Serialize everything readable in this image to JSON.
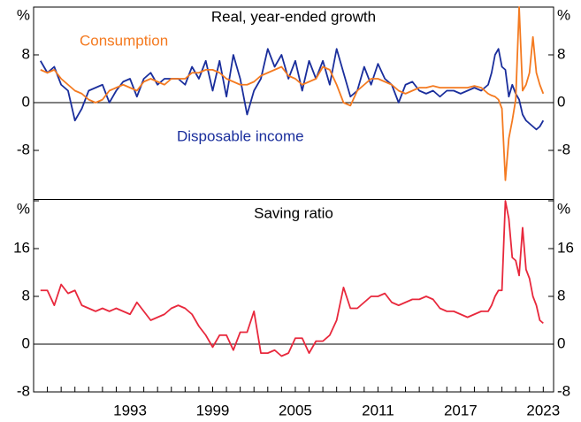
{
  "chart_data": [
    {
      "type": "line",
      "title": "Real, year-ended growth",
      "x": [
        1986.5,
        1987,
        1987.5,
        1988,
        1988.5,
        1989,
        1989.5,
        1990,
        1990.5,
        1991,
        1991.5,
        1992,
        1992.5,
        1993,
        1993.5,
        1994,
        1994.5,
        1995,
        1995.5,
        1996,
        1996.5,
        1997,
        1997.5,
        1998,
        1998.5,
        1999,
        1999.5,
        2000,
        2000.5,
        2001,
        2001.5,
        2002,
        2002.5,
        2003,
        2003.5,
        2004,
        2004.5,
        2005,
        2005.5,
        2006,
        2006.5,
        2007,
        2007.5,
        2008,
        2008.5,
        2009,
        2009.5,
        2010,
        2010.5,
        2011,
        2011.5,
        2012,
        2012.5,
        2013,
        2013.5,
        2014,
        2014.5,
        2015,
        2015.5,
        2016,
        2016.5,
        2017,
        2017.5,
        2018,
        2018.5,
        2019,
        2019.25,
        2019.5,
        2019.75,
        2020,
        2020.25,
        2020.5,
        2020.75,
        2021,
        2021.25,
        2021.5,
        2021.75,
        2022,
        2022.25,
        2022.5,
        2022.75,
        2023
      ],
      "series": [
        {
          "name": "Disposable income",
          "color": "#1a2e9c",
          "values": [
            7,
            5,
            6,
            3,
            2,
            -3,
            -1,
            2,
            2.5,
            3,
            0,
            2,
            3.5,
            4,
            1,
            4,
            5,
            3,
            4,
            4,
            4,
            3,
            6,
            4,
            7,
            2,
            7,
            1,
            8,
            4,
            -2,
            2,
            4,
            9,
            6,
            8,
            4,
            7,
            2,
            7,
            4,
            7,
            3,
            9,
            5,
            1,
            2,
            6,
            3,
            6.5,
            4,
            3,
            0,
            3,
            3.5,
            2,
            1.5,
            2,
            1,
            2,
            2,
            1.5,
            2,
            2.5,
            2,
            3,
            5,
            8,
            9,
            6,
            5.5,
            1,
            3,
            1.5,
            0.5,
            -2,
            -3,
            -3.5,
            -4,
            -4.5,
            -4,
            -3
          ]
        },
        {
          "name": "Consumption",
          "color": "#f47a20",
          "values": [
            5.5,
            5,
            5.5,
            4,
            3,
            2,
            1.5,
            0.5,
            0,
            0.5,
            2,
            2.5,
            3,
            2.5,
            2,
            3.5,
            4,
            3.5,
            3,
            4,
            4,
            4,
            5,
            5,
            5.5,
            5.5,
            5,
            4,
            3.5,
            3,
            3,
            3.5,
            4.5,
            5,
            5.5,
            6,
            4.5,
            4,
            3,
            3.5,
            4,
            6,
            5.5,
            3,
            0,
            -0.5,
            2,
            3,
            4,
            4,
            3.5,
            3,
            2,
            1.5,
            2,
            2.5,
            2.5,
            2.8,
            2.5,
            2.5,
            2.5,
            2.5,
            2.5,
            2.8,
            2.5,
            1.5,
            1.2,
            1.0,
            0.5,
            -1,
            -13,
            -6,
            -3,
            0.5,
            16,
            2,
            3,
            5,
            11,
            5,
            3,
            1.5
          ]
        }
      ],
      "xlim": [
        1986,
        2023.75
      ],
      "ylim": [
        -16,
        16
      ],
      "yticks": [
        -8,
        0,
        8,
        {
          "value": 16,
          "label": "%"
        }
      ]
    },
    {
      "type": "line",
      "title": "Saving ratio",
      "x": [
        1986.5,
        1987,
        1987.5,
        1988,
        1988.5,
        1989,
        1989.5,
        1990,
        1990.5,
        1991,
        1991.5,
        1992,
        1992.5,
        1993,
        1993.5,
        1994,
        1994.5,
        1995,
        1995.5,
        1996,
        1996.5,
        1997,
        1997.5,
        1998,
        1998.5,
        1999,
        1999.5,
        2000,
        2000.5,
        2001,
        2001.5,
        2002,
        2002.5,
        2003,
        2003.5,
        2004,
        2004.5,
        2005,
        2005.5,
        2006,
        2006.5,
        2007,
        2007.5,
        2008,
        2008.5,
        2009,
        2009.5,
        2010,
        2010.5,
        2011,
        2011.5,
        2012,
        2012.5,
        2013,
        2013.5,
        2014,
        2014.5,
        2015,
        2015.5,
        2016,
        2016.5,
        2017,
        2017.5,
        2018,
        2018.5,
        2019,
        2019.25,
        2019.5,
        2019.75,
        2020,
        2020.25,
        2020.5,
        2020.75,
        2021,
        2021.25,
        2021.5,
        2021.75,
        2022,
        2022.25,
        2022.5,
        2022.75,
        2023
      ],
      "series": [
        {
          "name": "Saving ratio",
          "color": "#e8283c",
          "values": [
            9,
            9,
            6.5,
            10,
            8.5,
            9,
            6.5,
            6,
            5.5,
            6,
            5.5,
            6,
            5.5,
            5,
            7,
            5.5,
            4,
            4.5,
            5,
            6,
            6.5,
            6,
            5,
            3,
            1.5,
            -0.5,
            1.5,
            1.5,
            -1,
            2,
            2,
            5.5,
            -1.5,
            -1.5,
            -1,
            -2,
            -1.5,
            1,
            1,
            -1.5,
            0.5,
            0.5,
            1.5,
            4,
            9.5,
            6,
            6,
            7,
            8,
            8,
            8.5,
            7,
            6.5,
            7,
            7.5,
            7.5,
            8,
            7.5,
            6,
            5.5,
            5.5,
            5,
            4.5,
            5,
            5.5,
            5.5,
            6.5,
            8,
            9,
            9,
            24,
            21,
            14.5,
            14,
            11.5,
            19.5,
            12.5,
            11,
            8,
            6.5,
            4,
            3.5
          ]
        }
      ],
      "xlim": [
        1986,
        2023.75
      ],
      "ylim": [
        -8,
        24
      ],
      "yticks": [
        -8,
        0,
        8,
        16,
        {
          "value": 24,
          "label": "%"
        }
      ],
      "xticks": [
        1993,
        1999,
        2005,
        2011,
        2017,
        2023
      ]
    }
  ]
}
